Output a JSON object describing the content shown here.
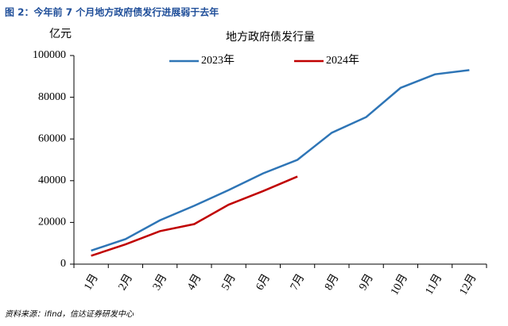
{
  "figure_title": "图 2：今年前 7 个月地方政府债发行进展弱于去年",
  "source": "资料来源：ifind，信达证券研发中心",
  "chart_data": {
    "type": "line",
    "title": "地方政府债发行量",
    "y_label": "亿元",
    "categories": [
      "1月",
      "2月",
      "3月",
      "4月",
      "5月",
      "6月",
      "7月",
      "8月",
      "9月",
      "10月",
      "11月",
      "12月"
    ],
    "series": [
      {
        "name": "2023年",
        "color": "#2e75b6",
        "values": [
          6500,
          12000,
          21000,
          28000,
          35500,
          43500,
          50000,
          63000,
          70500,
          84500,
          91000,
          93000
        ]
      },
      {
        "name": "2024年",
        "color": "#c00000",
        "values": [
          4000,
          9500,
          15800,
          19200,
          28500,
          35000,
          42000,
          null,
          null,
          null,
          null,
          null
        ]
      }
    ],
    "ylim": [
      0,
      100000
    ],
    "yticks": [
      0,
      20000,
      40000,
      60000,
      80000,
      100000
    ],
    "grid": false,
    "legend": "top"
  }
}
